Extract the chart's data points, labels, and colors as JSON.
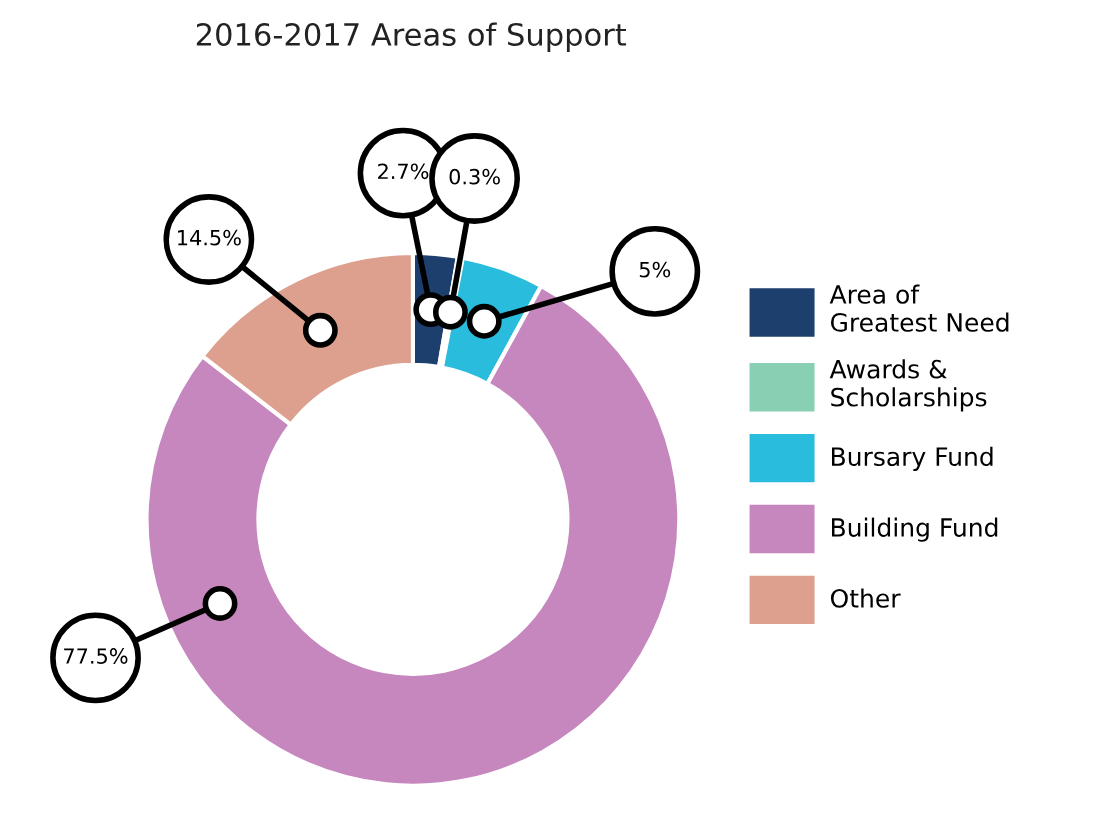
{
  "chart_data": {
    "type": "donut",
    "title": "2016-2017 Areas of Support",
    "categories": [
      "Area of Greatest Need",
      "Awards & Scholarships",
      "Bursary Fund",
      "Building Fund",
      "Other"
    ],
    "values": [
      2.7,
      0.3,
      5,
      77.5,
      14.5
    ],
    "value_labels": [
      "2.7%",
      "0.3%",
      "5%",
      "77.5%",
      "14.5%"
    ],
    "colors": [
      "#1c3f6e",
      "#88cfb3",
      "#29bcdc",
      "#c686be",
      "#dea08e"
    ],
    "legend": "right"
  }
}
